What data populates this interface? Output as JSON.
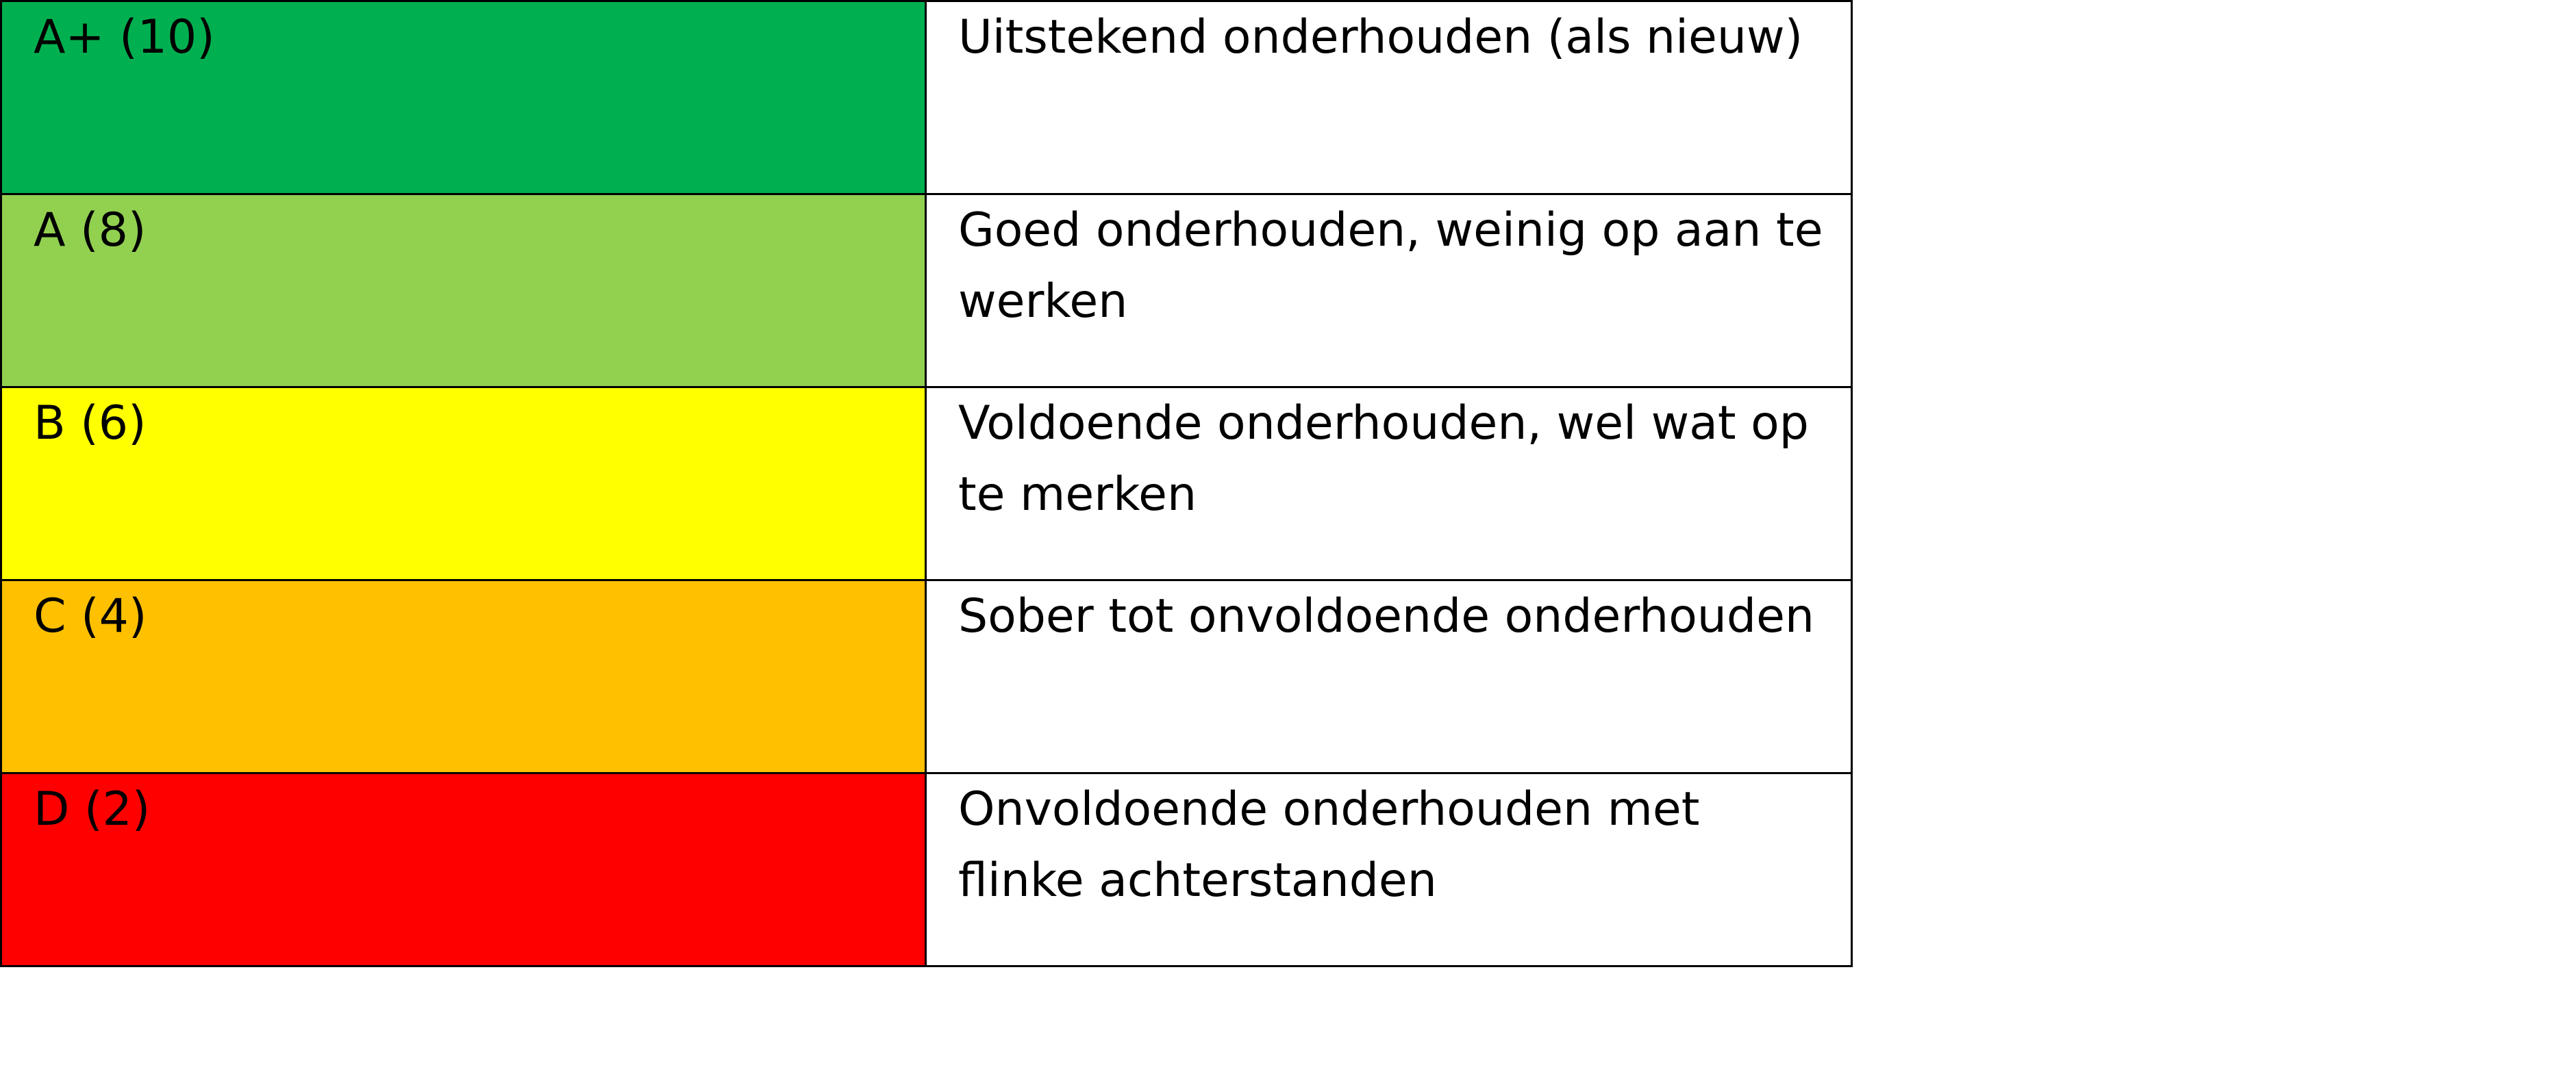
{
  "table": {
    "rows": [
      {
        "grade": "A+ (10)",
        "description": "Uitstekend onderhouden (als nieuw)",
        "color": "#00b050"
      },
      {
        "grade": "A (8)",
        "description": "Goed onderhouden, weinig op aan te werken",
        "color": "#92d050"
      },
      {
        "grade": "B (6)",
        "description": "Voldoende onderhouden, wel wat op te merken",
        "color": "#ffff00"
      },
      {
        "grade": "C (4)",
        "description": "Sober tot onvoldoende onderhouden",
        "color": "#ffc000"
      },
      {
        "grade": "D (2)",
        "description": "Onvoldoende onderhouden met flinke achterstanden",
        "color": "#ff0000"
      }
    ]
  }
}
